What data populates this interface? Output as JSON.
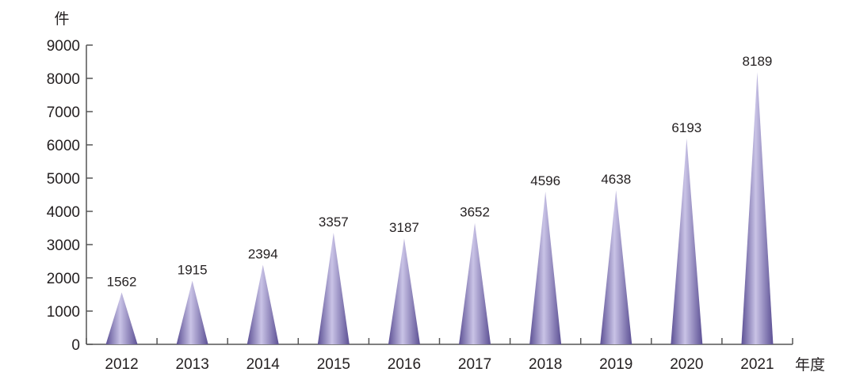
{
  "chart_data": {
    "type": "bar",
    "bar_shape": "triangle",
    "title": "",
    "xlabel": "年度",
    "ylabel": "件",
    "categories": [
      "2012",
      "2013",
      "2014",
      "2015",
      "2016",
      "2017",
      "2018",
      "2019",
      "2020",
      "2021"
    ],
    "values": [
      1562,
      1915,
      2394,
      3357,
      3187,
      3652,
      4596,
      4638,
      6193,
      8189
    ],
    "data_labels": [
      "1562",
      "1915",
      "2394",
      "3357",
      "3187",
      "3652",
      "4596",
      "4638",
      "6193",
      "8189"
    ],
    "ylim": [
      0,
      9000
    ],
    "yticks": [
      0,
      1000,
      2000,
      3000,
      4000,
      5000,
      6000,
      7000,
      8000,
      9000
    ],
    "ytick_labels": [
      "0",
      "1000",
      "2000",
      "3000",
      "4000",
      "5000",
      "6000",
      "7000",
      "8000",
      "9000"
    ],
    "grid": false,
    "legend": "none",
    "colors": {
      "bar_light": "#c9c3e6",
      "bar_mid": "#9a90c9",
      "bar_dark": "#5c5094",
      "axis": "#555555",
      "text": "#231f20"
    }
  }
}
